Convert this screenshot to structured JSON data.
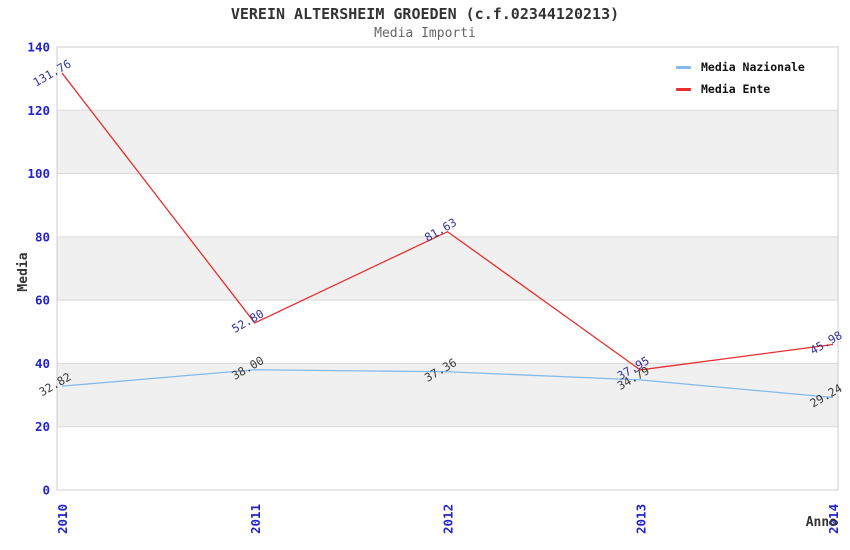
{
  "header": {
    "title": "VEREIN ALTERSHEIM GROEDEN (c.f.02344120213)",
    "subtitle": "Media Importi"
  },
  "legend": [
    {
      "label": "Media Nazionale",
      "color": "#85b9ea"
    },
    {
      "label": "Media Ente",
      "color": "#e62e2e"
    }
  ],
  "chart_data": {
    "type": "line",
    "title": "VEREIN ALTERSHEIM GROEDEN (c.f.02344120213)",
    "subtitle": "Media Importi",
    "xlabel": "Anno",
    "ylabel": "Media",
    "categories": [
      "2010",
      "2011",
      "2012",
      "2013",
      "2014"
    ],
    "series": [
      {
        "name": "Media Nazionale",
        "color": "#85b9ea",
        "label_color": "#3a3a3a",
        "values": [
          32.82,
          38.0,
          37.36,
          34.79,
          29.24
        ]
      },
      {
        "name": "Media Ente",
        "color": "#e62e2e",
        "label_color": "#33339b",
        "values": [
          131.76,
          52.8,
          81.63,
          37.95,
          45.98
        ]
      }
    ],
    "ylim": [
      0,
      140
    ],
    "ytick_step": 20,
    "grid": true,
    "legend_position": "top-right",
    "band_color": "#f0f0f0",
    "tick_color": "#2222cc",
    "gridline_color": "#d9d9d9",
    "frame_color": "#cccccc"
  }
}
